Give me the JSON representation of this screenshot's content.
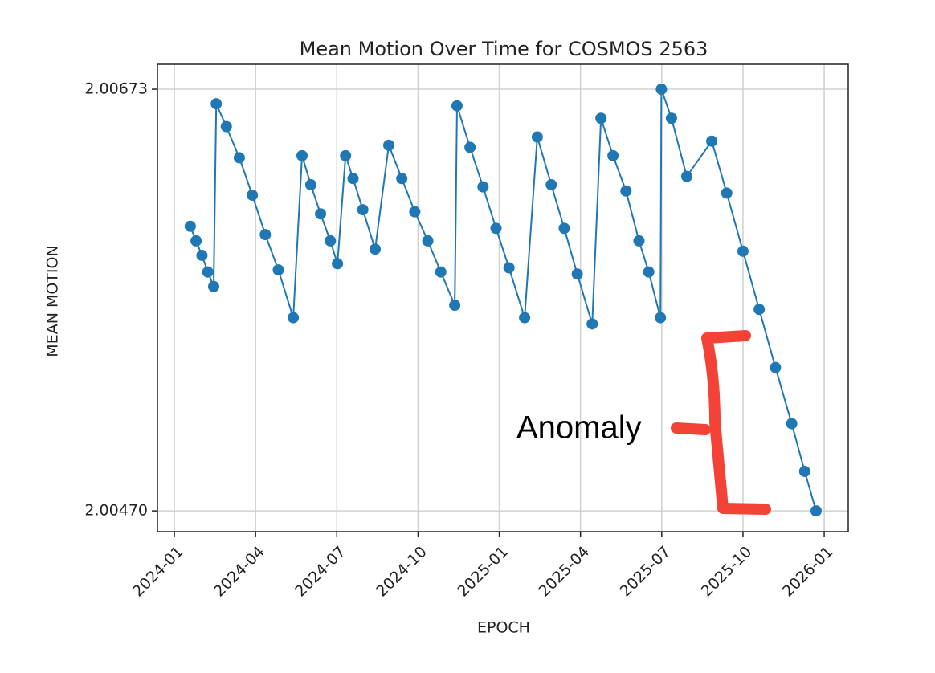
{
  "chart_data": {
    "type": "line",
    "title": "Mean Motion Over Time for COSMOS 2563",
    "x_label": "EPOCH",
    "y_label": "MEAN MOTION",
    "annotation": "Anomaly",
    "grid": true,
    "xlim": [
      2023.948,
      2026.074
    ],
    "ylim": [
      2.0046,
      2.00685
    ],
    "xticks": [
      {
        "value": 2024.0,
        "label": "2024-01"
      },
      {
        "value": 2024.25,
        "label": "2024-04"
      },
      {
        "value": 2024.5,
        "label": "2024-07"
      },
      {
        "value": 2024.75,
        "label": "2024-10"
      },
      {
        "value": 2025.0,
        "label": "2025-01"
      },
      {
        "value": 2025.25,
        "label": "2025-04"
      },
      {
        "value": 2025.5,
        "label": "2025-07"
      },
      {
        "value": 2025.75,
        "label": "2025-10"
      },
      {
        "value": 2026.0,
        "label": "2026-01"
      }
    ],
    "yticks": [
      {
        "value": 2.0047,
        "label": "2.00470"
      },
      2.00673
    ],
    "x": [
      2024.049,
      2024.067,
      2024.085,
      2024.103,
      2024.121,
      2024.129,
      2024.16,
      2024.2,
      2024.24,
      2024.28,
      2024.32,
      2024.366,
      2024.393,
      2024.42,
      2024.45,
      2024.48,
      2024.502,
      2024.527,
      2024.55,
      2024.58,
      2024.618,
      2024.66,
      2024.7,
      2024.74,
      2024.78,
      2024.82,
      2024.863,
      2024.87,
      2024.91,
      2024.95,
      2024.99,
      2025.03,
      2025.078,
      2025.117,
      2025.16,
      2025.2,
      2025.24,
      2025.286,
      2025.313,
      2025.35,
      2025.39,
      2025.43,
      2025.46,
      2025.496,
      2025.499,
      2025.53,
      2025.577,
      2025.654,
      2025.7,
      2025.75,
      2025.8,
      2025.85,
      2025.9,
      2025.94,
      2025.975
    ],
    "series": [
      {
        "name": "COSMOS 2563",
        "color": "#1f77b4",
        "values": [
          2.00607,
          2.006,
          2.00593,
          2.00585,
          2.00578,
          2.00666,
          2.00655,
          2.0064,
          2.00622,
          2.00603,
          2.00586,
          2.00563,
          2.00641,
          2.00627,
          2.00613,
          2.006,
          2.00589,
          2.00641,
          2.0063,
          2.00615,
          2.00596,
          2.00646,
          2.0063,
          2.00614,
          2.006,
          2.00585,
          2.00569,
          2.00665,
          2.00645,
          2.00626,
          2.00606,
          2.00587,
          2.00563,
          2.0065,
          2.00627,
          2.00606,
          2.00584,
          2.0056,
          2.00659,
          2.00641,
          2.00624,
          2.006,
          2.00585,
          2.00563,
          2.00673,
          2.00659,
          2.00631,
          2.00648,
          2.00623,
          2.00595,
          2.00567,
          2.00539,
          2.00512,
          2.00489,
          2.0047
        ]
      }
    ]
  }
}
